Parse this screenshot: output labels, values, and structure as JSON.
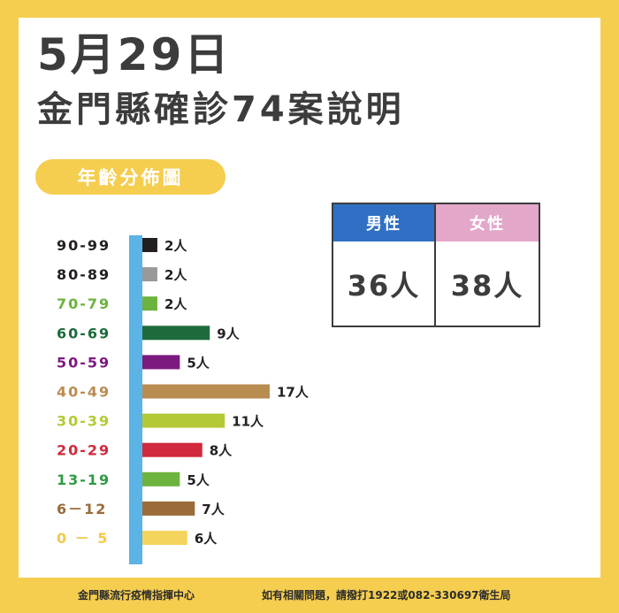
{
  "title": {
    "date": "5月29日",
    "subtitle": "金門縣確診74案說明"
  },
  "section_label": "年齡分佈圖",
  "gender": {
    "male": {
      "label": "男性",
      "value": "36人",
      "color": "#2f70c4"
    },
    "female": {
      "label": "女性",
      "value": "38人",
      "color": "#e2a7c9"
    }
  },
  "footer": {
    "org": "金門縣流行疫情指揮中心",
    "contact": "如有相關問題，請撥打1922或082-330697衛生局"
  },
  "colors": {
    "background": "#f5cd4f",
    "axis": "#5cb3e5",
    "text": "#3c3c3c"
  },
  "chart_data": {
    "type": "bar",
    "orientation": "horizontal",
    "categories": [
      "90-99",
      "80-89",
      "70-79",
      "60-69",
      "50-59",
      "40-49",
      "30-39",
      "20-29",
      "13-19",
      "6－12",
      "0 － 5"
    ],
    "values": [
      2,
      2,
      2,
      9,
      5,
      17,
      11,
      8,
      5,
      7,
      6
    ],
    "value_labels": [
      "2人",
      "2人",
      "2人",
      "9人",
      "5人",
      "17人",
      "11人",
      "8人",
      "5人",
      "7人",
      "6人"
    ],
    "bar_colors": [
      "#231f20",
      "#999999",
      "#6db33f",
      "#1d6b3c",
      "#7d1a80",
      "#b98c52",
      "#b4c935",
      "#d1293d",
      "#6db33f",
      "#9b6b3a",
      "#f5d45e"
    ],
    "label_colors": [
      "#231f20",
      "#231f20",
      "#6db33f",
      "#1d6b3c",
      "#7d1a80",
      "#b98c52",
      "#b4c935",
      "#d1293d",
      "#2e9b43",
      "#9b6b3a",
      "#f2c94c"
    ],
    "unit": "人",
    "xlim": [
      0,
      17
    ],
    "grid": false,
    "legend": "none"
  }
}
